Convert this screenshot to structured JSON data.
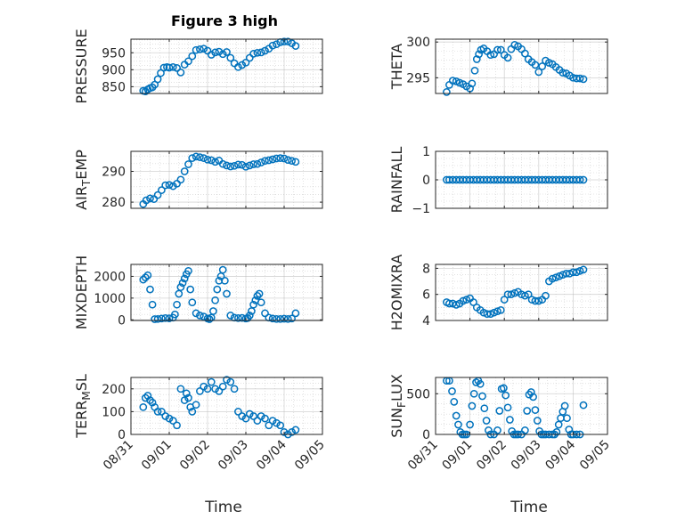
{
  "figure_title": "Figure 3 high",
  "xlabel": "Time",
  "colors": {
    "marker": "#0072BD",
    "axis": "#262626",
    "grid": "#b0b0b0"
  },
  "x_tick_labels": [
    "08/31",
    "09/01",
    "09/02",
    "09/03",
    "09/04",
    "09/05"
  ],
  "chart_data": [
    {
      "type": "scatter",
      "ylabel": "PRESSURE",
      "y_ticks": [
        850,
        900,
        950
      ],
      "ylim": [
        830,
        990
      ],
      "x_day_range": [
        0,
        5
      ],
      "grid": true,
      "x": [
        0.32,
        0.38,
        0.44,
        0.5,
        0.56,
        0.62,
        0.7,
        0.78,
        0.86,
        0.94,
        1.0,
        1.1,
        1.2,
        1.3,
        1.4,
        1.5,
        1.6,
        1.7,
        1.8,
        1.9,
        2.0,
        2.1,
        2.2,
        2.3,
        2.4,
        2.5,
        2.6,
        2.7,
        2.8,
        2.9,
        3.0,
        3.1,
        3.2,
        3.3,
        3.4,
        3.5,
        3.6,
        3.7,
        3.8,
        3.9,
        4.0,
        4.1,
        4.2,
        4.3
      ],
      "y": [
        838,
        836,
        842,
        846,
        848,
        856,
        872,
        890,
        906,
        908,
        906,
        908,
        905,
        892,
        915,
        925,
        940,
        958,
        960,
        962,
        956,
        944,
        951,
        953,
        946,
        952,
        935,
        919,
        908,
        914,
        921,
        935,
        947,
        950,
        951,
        956,
        962,
        971,
        975,
        981,
        983,
        983,
        978,
        970
      ]
    },
    {
      "type": "scatter",
      "ylabel": "THETA",
      "y_ticks": [
        295,
        300
      ],
      "ylim": [
        292.8,
        300.4
      ],
      "x_day_range": [
        0,
        5
      ],
      "grid": true,
      "x": [
        0.32,
        0.4,
        0.5,
        0.6,
        0.7,
        0.8,
        0.9,
        1.0,
        1.06,
        1.14,
        1.2,
        1.26,
        1.32,
        1.4,
        1.5,
        1.6,
        1.7,
        1.8,
        1.9,
        2.0,
        2.1,
        2.2,
        2.3,
        2.4,
        2.5,
        2.6,
        2.7,
        2.8,
        2.9,
        3.0,
        3.1,
        3.2,
        3.3,
        3.4,
        3.5,
        3.6,
        3.7,
        3.8,
        3.9,
        4.0,
        4.1,
        4.2,
        4.3
      ],
      "y": [
        293.0,
        294.0,
        294.6,
        294.5,
        294.3,
        294.1,
        293.8,
        293.5,
        294.2,
        296.0,
        297.6,
        298.3,
        298.9,
        299.1,
        298.7,
        298.2,
        298.3,
        298.9,
        298.9,
        298.2,
        297.8,
        299.0,
        299.6,
        299.4,
        299.0,
        298.4,
        297.6,
        297.2,
        296.8,
        295.8,
        296.6,
        297.4,
        297.1,
        296.9,
        296.5,
        296.1,
        295.7,
        295.6,
        295.3,
        295.0,
        294.9,
        294.9,
        294.8
      ]
    },
    {
      "type": "scatter",
      "ylabel": "AIR_TEMP",
      "y_ticks": [
        280,
        290
      ],
      "ylim": [
        278,
        296.5
      ],
      "x_day_range": [
        0,
        5
      ],
      "grid": true,
      "x": [
        0.32,
        0.4,
        0.5,
        0.6,
        0.7,
        0.8,
        0.9,
        1.0,
        1.1,
        1.2,
        1.3,
        1.4,
        1.5,
        1.6,
        1.7,
        1.8,
        1.9,
        2.0,
        2.1,
        2.2,
        2.3,
        2.4,
        2.5,
        2.6,
        2.7,
        2.8,
        2.9,
        3.0,
        3.1,
        3.2,
        3.3,
        3.4,
        3.5,
        3.6,
        3.7,
        3.8,
        3.9,
        4.0,
        4.1,
        4.2,
        4.3
      ],
      "y": [
        279.4,
        280.6,
        281.2,
        281.0,
        282.3,
        283.9,
        285.5,
        285.6,
        285.2,
        286.0,
        287.3,
        290.0,
        292.3,
        294.3,
        294.8,
        294.6,
        294.3,
        293.8,
        293.6,
        293.1,
        293.5,
        292.4,
        291.9,
        291.6,
        291.8,
        292.2,
        292.1,
        291.5,
        291.9,
        292.3,
        292.4,
        292.9,
        293.4,
        293.6,
        293.9,
        294.2,
        294.3,
        294.2,
        293.7,
        293.4,
        293.1
      ]
    },
    {
      "type": "scatter",
      "ylabel": "RAINFALL",
      "y_ticks": [
        -1,
        0,
        1
      ],
      "ylim": [
        -1,
        1
      ],
      "x_day_range": [
        0,
        5
      ],
      "grid": true,
      "x": [
        0.32,
        0.4,
        0.5,
        0.6,
        0.7,
        0.8,
        0.9,
        1.0,
        1.1,
        1.2,
        1.3,
        1.4,
        1.5,
        1.6,
        1.7,
        1.8,
        1.9,
        2.0,
        2.1,
        2.2,
        2.3,
        2.4,
        2.5,
        2.6,
        2.7,
        2.8,
        2.9,
        3.0,
        3.1,
        3.2,
        3.3,
        3.4,
        3.5,
        3.6,
        3.7,
        3.8,
        3.9,
        4.0,
        4.1,
        4.2,
        4.3
      ],
      "y": [
        0,
        0,
        0,
        0,
        0,
        0,
        0,
        0,
        0,
        0,
        0,
        0,
        0,
        0,
        0,
        0,
        0,
        0,
        0,
        0,
        0,
        0,
        0,
        0,
        0,
        0,
        0,
        0,
        0,
        0,
        0,
        0,
        0,
        0,
        0,
        0,
        0,
        0,
        0,
        0,
        0
      ]
    },
    {
      "type": "scatter",
      "ylabel": "MIXDEPTH",
      "y_ticks": [
        0,
        1000,
        2000
      ],
      "ylim": [
        -30,
        2550
      ],
      "x_day_range": [
        0,
        5
      ],
      "grid": true,
      "x": [
        0.32,
        0.38,
        0.44,
        0.5,
        0.56,
        0.62,
        0.7,
        0.8,
        0.9,
        1.0,
        1.1,
        1.15,
        1.2,
        1.25,
        1.3,
        1.35,
        1.4,
        1.45,
        1.5,
        1.55,
        1.6,
        1.7,
        1.8,
        1.9,
        2.0,
        2.05,
        2.1,
        2.15,
        2.2,
        2.25,
        2.3,
        2.35,
        2.4,
        2.45,
        2.5,
        2.6,
        2.7,
        2.8,
        2.9,
        3.0,
        3.05,
        3.1,
        3.15,
        3.2,
        3.25,
        3.3,
        3.35,
        3.4,
        3.5,
        3.6,
        3.7,
        3.8,
        3.9,
        4.0,
        4.1,
        4.2,
        4.3
      ],
      "y": [
        1850,
        1950,
        2050,
        1400,
        700,
        30,
        40,
        60,
        80,
        70,
        100,
        250,
        700,
        1200,
        1500,
        1700,
        1900,
        2100,
        2250,
        1400,
        800,
        300,
        200,
        150,
        60,
        30,
        100,
        400,
        900,
        1400,
        1800,
        2000,
        2300,
        1800,
        1200,
        200,
        100,
        80,
        90,
        60,
        80,
        200,
        400,
        700,
        900,
        1100,
        1200,
        800,
        300,
        100,
        60,
        40,
        40,
        50,
        40,
        60,
        300
      ]
    },
    {
      "type": "scatter",
      "ylabel": "H2OMIXRA",
      "y_ticks": [
        4,
        6,
        8
      ],
      "ylim": [
        4,
        8.3
      ],
      "x_day_range": [
        0,
        5
      ],
      "grid": true,
      "x": [
        0.32,
        0.4,
        0.5,
        0.6,
        0.7,
        0.8,
        0.9,
        1.0,
        1.1,
        1.2,
        1.3,
        1.4,
        1.5,
        1.6,
        1.7,
        1.8,
        1.9,
        2.0,
        2.1,
        2.2,
        2.3,
        2.4,
        2.5,
        2.6,
        2.7,
        2.8,
        2.9,
        3.0,
        3.1,
        3.2,
        3.3,
        3.4,
        3.5,
        3.6,
        3.7,
        3.8,
        3.9,
        4.0,
        4.1,
        4.2,
        4.3
      ],
      "y": [
        5.4,
        5.3,
        5.3,
        5.2,
        5.3,
        5.5,
        5.6,
        5.7,
        5.4,
        5.0,
        4.8,
        4.6,
        4.5,
        4.5,
        4.6,
        4.7,
        4.8,
        5.6,
        6.0,
        6.0,
        6.1,
        6.2,
        6.0,
        5.9,
        6.0,
        5.6,
        5.5,
        5.5,
        5.6,
        5.9,
        7.0,
        7.2,
        7.3,
        7.4,
        7.5,
        7.6,
        7.6,
        7.7,
        7.7,
        7.8,
        7.9
      ]
    },
    {
      "type": "scatter",
      "ylabel": "TERR_MSL",
      "y_ticks": [
        0,
        100,
        200
      ],
      "ylim": [
        0,
        250
      ],
      "x_day_range": [
        0,
        5
      ],
      "grid": true,
      "x": [
        0.32,
        0.38,
        0.44,
        0.5,
        0.56,
        0.62,
        0.7,
        0.8,
        0.9,
        1.0,
        1.1,
        1.2,
        1.3,
        1.4,
        1.45,
        1.5,
        1.55,
        1.6,
        1.7,
        1.8,
        1.9,
        2.0,
        2.1,
        2.2,
        2.3,
        2.4,
        2.5,
        2.6,
        2.7,
        2.8,
        2.9,
        3.0,
        3.1,
        3.2,
        3.3,
        3.4,
        3.5,
        3.6,
        3.7,
        3.8,
        3.9,
        4.0,
        4.1,
        4.2,
        4.3
      ],
      "y": [
        120,
        160,
        170,
        150,
        140,
        120,
        100,
        100,
        80,
        70,
        60,
        40,
        200,
        150,
        180,
        160,
        120,
        100,
        130,
        190,
        210,
        200,
        230,
        200,
        190,
        210,
        240,
        230,
        200,
        100,
        80,
        70,
        90,
        80,
        60,
        80,
        70,
        40,
        60,
        50,
        40,
        10,
        0,
        10,
        20
      ]
    },
    {
      "type": "scatter",
      "ylabel": "SUN_FLUX",
      "y_ticks": [
        0,
        500
      ],
      "ylim": [
        0,
        700
      ],
      "x_day_range": [
        0,
        5
      ],
      "grid": true,
      "x": [
        0.32,
        0.4,
        0.48,
        0.54,
        0.6,
        0.66,
        0.72,
        0.78,
        0.84,
        0.9,
        1.0,
        1.06,
        1.12,
        1.18,
        1.24,
        1.3,
        1.36,
        1.42,
        1.48,
        1.54,
        1.6,
        1.7,
        1.8,
        1.86,
        1.92,
        1.98,
        2.04,
        2.1,
        2.16,
        2.22,
        2.28,
        2.34,
        2.4,
        2.5,
        2.6,
        2.66,
        2.72,
        2.78,
        2.84,
        2.9,
        2.96,
        3.02,
        3.08,
        3.14,
        3.2,
        3.3,
        3.4,
        3.46,
        3.52,
        3.58,
        3.64,
        3.7,
        3.76,
        3.82,
        3.88,
        3.94,
        4.0,
        4.1,
        4.2,
        4.3
      ],
      "y": [
        660,
        660,
        530,
        400,
        230,
        120,
        30,
        0,
        0,
        0,
        120,
        350,
        500,
        640,
        660,
        620,
        470,
        320,
        170,
        50,
        0,
        0,
        50,
        290,
        560,
        570,
        480,
        330,
        180,
        40,
        0,
        0,
        0,
        0,
        50,
        290,
        490,
        520,
        460,
        300,
        170,
        40,
        0,
        0,
        0,
        0,
        0,
        0,
        30,
        120,
        200,
        280,
        350,
        200,
        60,
        0,
        0,
        0,
        0,
        360
      ]
    }
  ]
}
